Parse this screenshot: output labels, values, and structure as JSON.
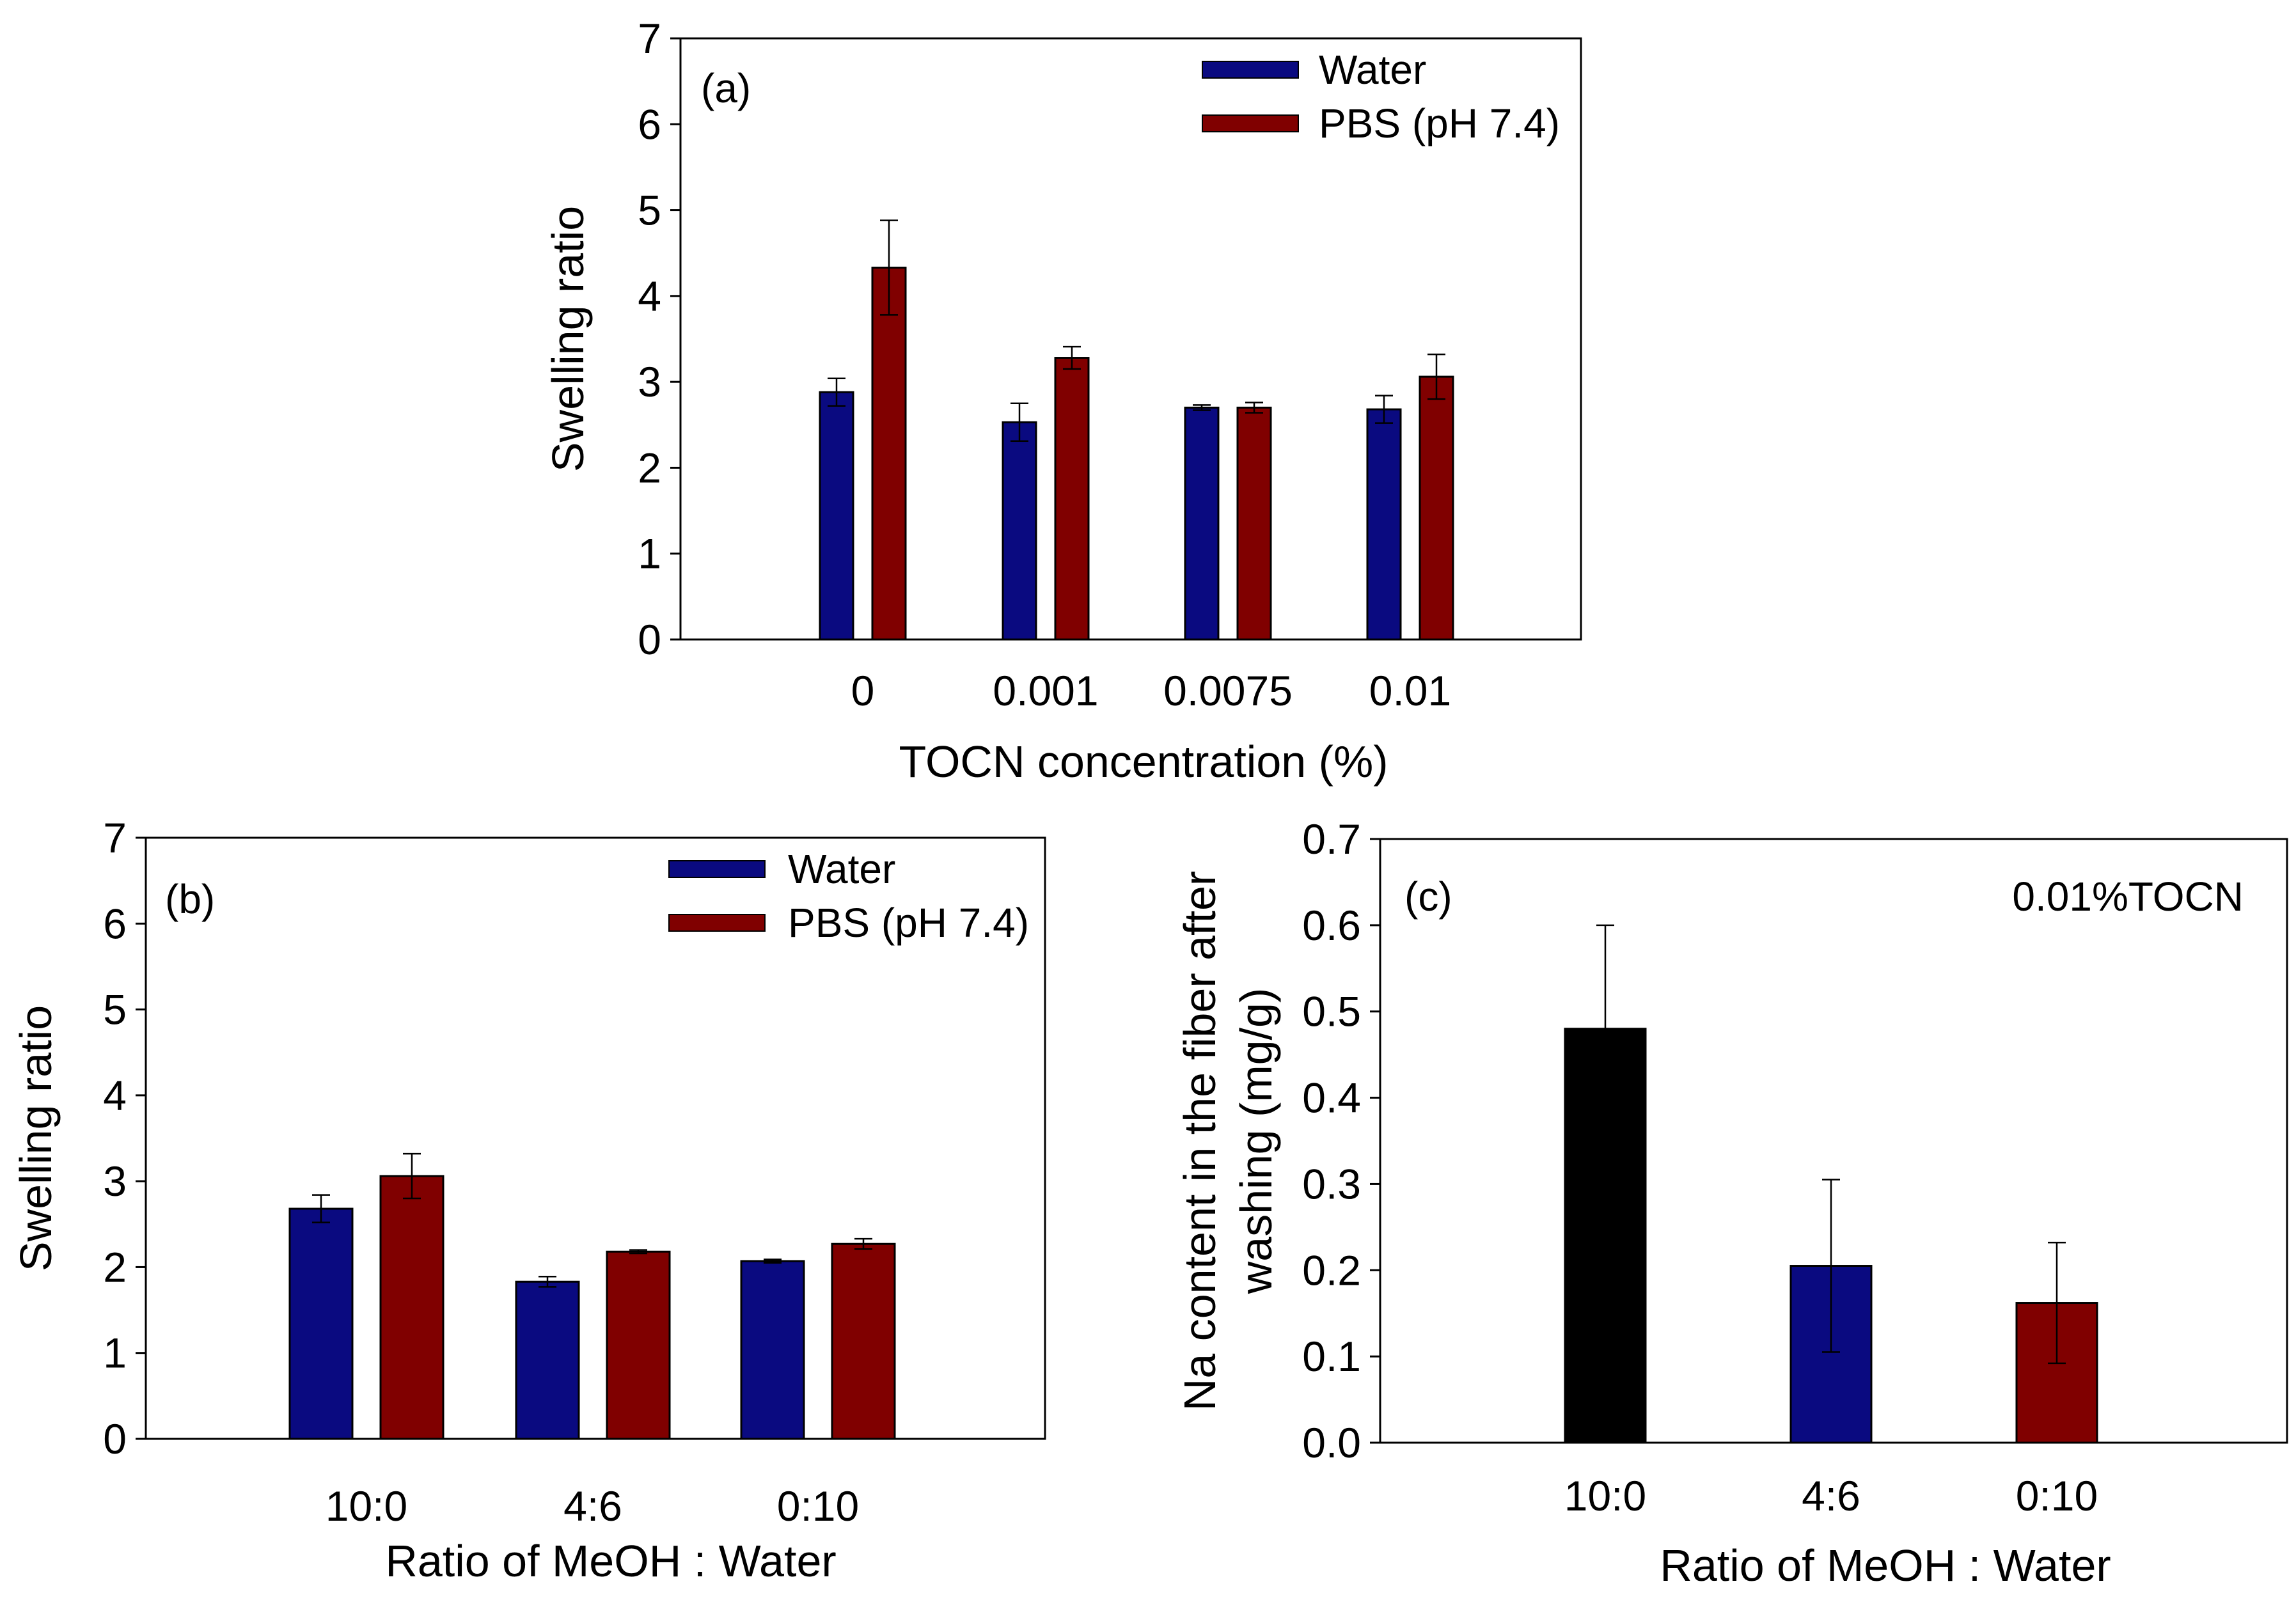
{
  "chart_data": [
    {
      "panel_label": "(a)",
      "type": "bar",
      "title": "",
      "xlabel": "TOCN concentration (%)",
      "ylabel": "Swelling ratio",
      "ylim": [
        0,
        7
      ],
      "yticks": [
        "0",
        "1",
        "2",
        "3",
        "4",
        "5",
        "6",
        "7"
      ],
      "categories": [
        "0",
        "0.001",
        "0.0075",
        "0.01"
      ],
      "series": [
        {
          "name": "Water",
          "color": "#0a0a80",
          "values": [
            2.88,
            2.53,
            2.7,
            2.68
          ],
          "errors": [
            0.16,
            0.22,
            0.03,
            0.16
          ]
        },
        {
          "name": "PBS (pH 7.4)",
          "color": "#800000",
          "values": [
            4.33,
            3.28,
            2.7,
            3.06
          ],
          "errors": [
            0.55,
            0.13,
            0.06,
            0.26
          ]
        }
      ],
      "legend_position": "top-right",
      "grid": false
    },
    {
      "panel_label": "(b)",
      "type": "bar",
      "title": "",
      "xlabel": "Ratio of MeOH : Water",
      "ylabel": "Swelling ratio",
      "ylim": [
        0,
        7
      ],
      "yticks": [
        "0",
        "1",
        "2",
        "3",
        "4",
        "5",
        "6",
        "7"
      ],
      "categories": [
        "10:0",
        "4:6",
        "0:10"
      ],
      "series": [
        {
          "name": "Water",
          "color": "#0a0a80",
          "values": [
            2.68,
            1.83,
            2.07
          ],
          "errors": [
            0.16,
            0.06,
            0.02
          ]
        },
        {
          "name": "PBS (pH 7.4)",
          "color": "#800000",
          "values": [
            3.06,
            2.18,
            2.27
          ],
          "errors": [
            0.26,
            0.02,
            0.06
          ]
        }
      ],
      "legend_position": "top-right",
      "grid": false
    },
    {
      "panel_label": "(c)",
      "type": "bar",
      "title": "",
      "annotation": "0.01%TOCN",
      "xlabel": "Ratio of MeOH : Water",
      "ylabel_lines": [
        "Na content in the fiber after",
        "washing (mg/g)"
      ],
      "ylim": [
        0,
        0.7
      ],
      "yticks": [
        "0.0",
        "0.1",
        "0.2",
        "0.3",
        "0.4",
        "0.5",
        "0.6",
        "0.7"
      ],
      "categories": [
        "10:0",
        "4:6",
        "0:10"
      ],
      "values": [
        0.48,
        0.205,
        0.162
      ],
      "errors": [
        0.12,
        0.1,
        0.07
      ],
      "colors": [
        "#000000",
        "#0a0a80",
        "#800000"
      ],
      "grid": false
    }
  ]
}
